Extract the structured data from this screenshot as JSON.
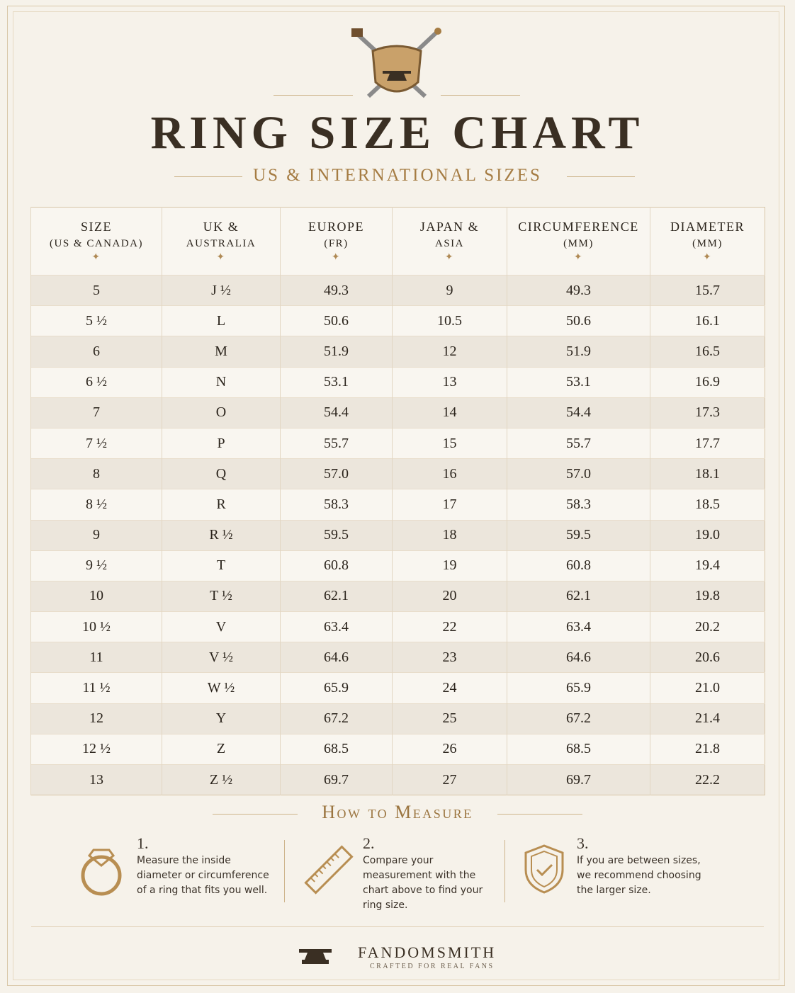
{
  "header": {
    "title": "RING SIZE CHART",
    "subtitle": "US & INTERNATIONAL SIZES"
  },
  "table": {
    "columns": [
      [
        "SIZE",
        "(US & CANADA)"
      ],
      [
        "UK &",
        "AUSTRALIA"
      ],
      [
        "EUROPE",
        "(FR)"
      ],
      [
        "JAPAN &",
        "ASIA"
      ],
      [
        "CIRCUMFERENCE",
        "(MM)"
      ],
      [
        "DIAMETER",
        "(MM)"
      ]
    ],
    "rows": [
      [
        "5",
        "J ½",
        "49.3",
        "9",
        "49.3",
        "15.7"
      ],
      [
        "5 ½",
        "L",
        "50.6",
        "10.5",
        "50.6",
        "16.1"
      ],
      [
        "6",
        "M",
        "51.9",
        "12",
        "51.9",
        "16.5"
      ],
      [
        "6 ½",
        "N",
        "53.1",
        "13",
        "53.1",
        "16.9"
      ],
      [
        "7",
        "O",
        "54.4",
        "14",
        "54.4",
        "17.3"
      ],
      [
        "7 ½",
        "P",
        "55.7",
        "15",
        "55.7",
        "17.7"
      ],
      [
        "8",
        "Q",
        "57.0",
        "16",
        "57.0",
        "18.1"
      ],
      [
        "8 ½",
        "R",
        "58.3",
        "17",
        "58.3",
        "18.5"
      ],
      [
        "9",
        "R ½",
        "59.5",
        "18",
        "59.5",
        "19.0"
      ],
      [
        "9 ½",
        "T",
        "60.8",
        "19",
        "60.8",
        "19.4"
      ],
      [
        "10",
        "T ½",
        "62.1",
        "20",
        "62.1",
        "19.8"
      ],
      [
        "10 ½",
        "V",
        "63.4",
        "22",
        "63.4",
        "20.2"
      ],
      [
        "11",
        "V ½",
        "64.6",
        "23",
        "64.6",
        "20.6"
      ],
      [
        "11 ½",
        "W ½",
        "65.9",
        "24",
        "65.9",
        "21.0"
      ],
      [
        "12",
        "Y",
        "67.2",
        "25",
        "67.2",
        "21.4"
      ],
      [
        "12 ½",
        "Z",
        "68.5",
        "26",
        "68.5",
        "21.8"
      ],
      [
        "13",
        "Z ½",
        "69.7",
        "27",
        "69.7",
        "22.2"
      ]
    ]
  },
  "measure": {
    "title": "How to Measure",
    "steps": [
      {
        "number": "1.",
        "text": "Measure the inside diameter or circumference of a ring that fits you well."
      },
      {
        "number": "2.",
        "text": "Compare your measurement with the chart above to find your ring size."
      },
      {
        "number": "3.",
        "text": "If you are between sizes, we recommend choosing the larger size."
      }
    ]
  },
  "footer": {
    "brand": "FANDOMSMITH",
    "tagline": "CRAFTED FOR REAL FANS"
  }
}
